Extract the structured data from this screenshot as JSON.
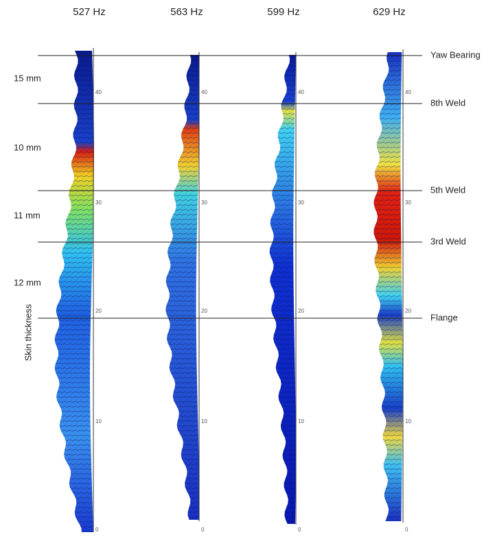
{
  "columns": [
    {
      "frequency": "527 Hz"
    },
    {
      "frequency": "563 Hz"
    },
    {
      "frequency": "599 Hz"
    },
    {
      "frequency": "629 Hz"
    }
  ],
  "axis_ticks": [
    "40",
    "30",
    "20",
    "10",
    "0"
  ],
  "levels": [
    {
      "label": "Yaw Bearing"
    },
    {
      "label": "8th Weld"
    },
    {
      "label": "5th Weld"
    },
    {
      "label": "3rd Weld"
    },
    {
      "label": "Flange"
    }
  ],
  "thickness": {
    "title": "Skin thickness",
    "labels": [
      "15 mm",
      "10 mm",
      "11 mm",
      "12 mm"
    ]
  }
}
